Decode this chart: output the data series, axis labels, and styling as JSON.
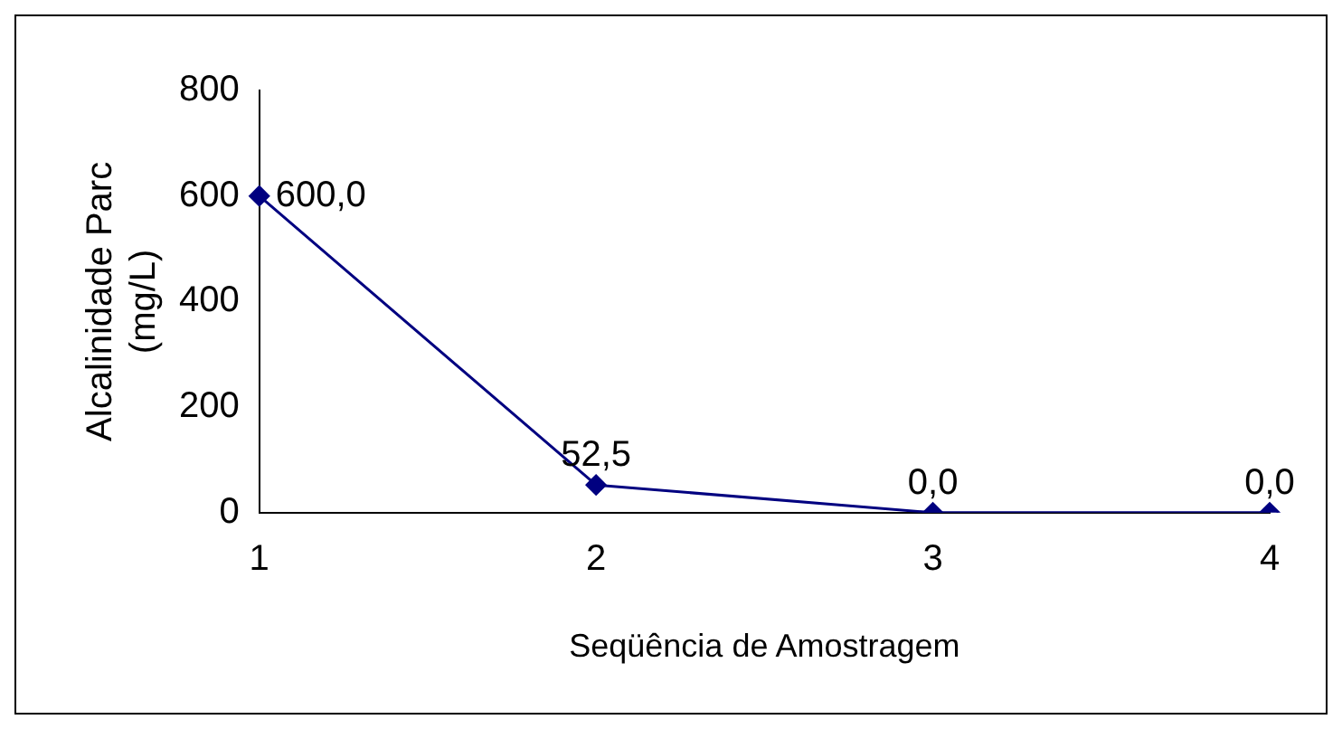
{
  "chart_data": {
    "type": "line",
    "xlabel": "Seqüência de Amostragem",
    "ylabel": "Alcalinidade Parc\n(mg/L)",
    "categories": [
      "1",
      "2",
      "3",
      "4"
    ],
    "series": [
      {
        "color": "#000080",
        "values": [
          600.0,
          52.5,
          0.0,
          0.0
        ],
        "value_labels": [
          "600,0",
          "52,5",
          "0,0",
          "0,0"
        ]
      }
    ],
    "ylim": [
      0,
      800
    ],
    "yticks": [
      0,
      200,
      400,
      600,
      800
    ],
    "grid": false,
    "legend": false,
    "marker": "diamond",
    "line_style": "solid"
  }
}
